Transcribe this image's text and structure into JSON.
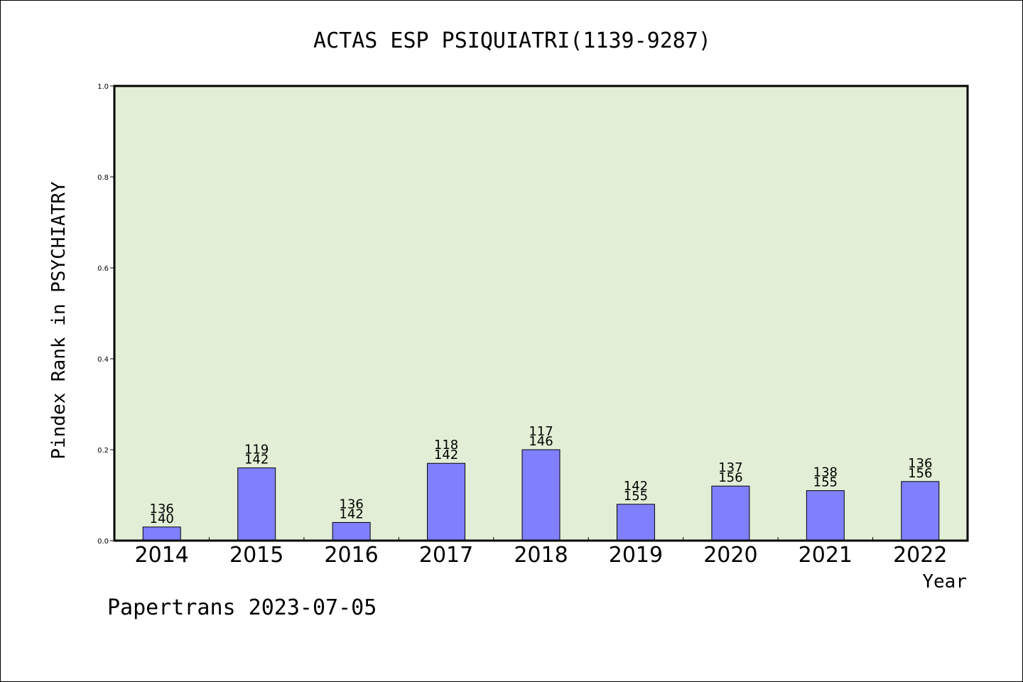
{
  "colors": {
    "plot_background": "#e2efd6",
    "bar_fill": "#8080ff",
    "bar_stroke": "#000000",
    "axis": "#000000"
  },
  "footer": "Papertrans 2023-07-05",
  "chart_data": {
    "type": "bar",
    "title": "ACTAS ESP PSIQUIATRI(1139-9287)",
    "xlabel": "Year",
    "ylabel": "Pindex Rank in PSYCHIATRY",
    "ylim": [
      0,
      1.0
    ],
    "yticks": [
      "0.0",
      "0.2",
      "0.4",
      "0.6",
      "0.8",
      "1.0"
    ],
    "grid": false,
    "categories": [
      "2014",
      "2015",
      "2016",
      "2017",
      "2018",
      "2019",
      "2020",
      "2021",
      "2022"
    ],
    "values": [
      0.03,
      0.16,
      0.04,
      0.17,
      0.2,
      0.08,
      0.12,
      0.11,
      0.13
    ],
    "rank_labels": [
      "136",
      "119",
      "136",
      "118",
      "117",
      "142",
      "137",
      "138",
      "136"
    ],
    "total_labels": [
      "140",
      "142",
      "142",
      "142",
      "146",
      "155",
      "156",
      "155",
      "156"
    ]
  }
}
